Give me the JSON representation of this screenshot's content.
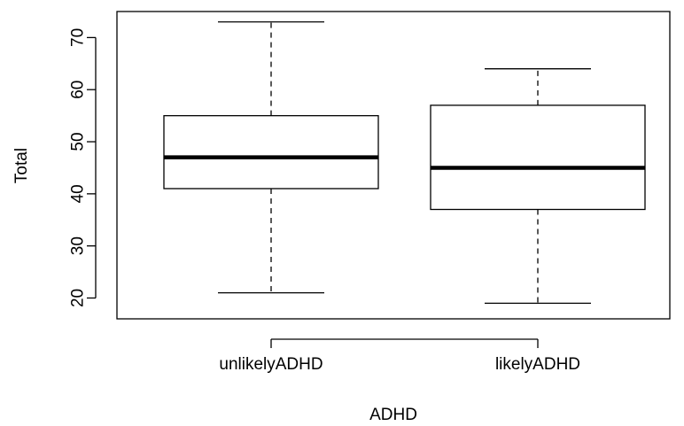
{
  "chart_data": {
    "type": "boxplot",
    "xlabel": "ADHD",
    "ylabel": "Total",
    "ylim": [
      16,
      75
    ],
    "yticks": [
      20,
      30,
      40,
      50,
      60,
      70
    ],
    "grid": false,
    "legend": "none",
    "categories": [
      "unlikelyADHD",
      "likelyADHD"
    ],
    "boxes": [
      {
        "category": "unlikelyADHD",
        "min": 21,
        "q1": 41,
        "median": 47,
        "q3": 55,
        "max": 73
      },
      {
        "category": "likelyADHD",
        "min": 19,
        "q1": 37,
        "median": 45,
        "q3": 57,
        "max": 64
      }
    ],
    "colors": {
      "box_fill": "#ffffff",
      "stroke": "#000000"
    }
  }
}
